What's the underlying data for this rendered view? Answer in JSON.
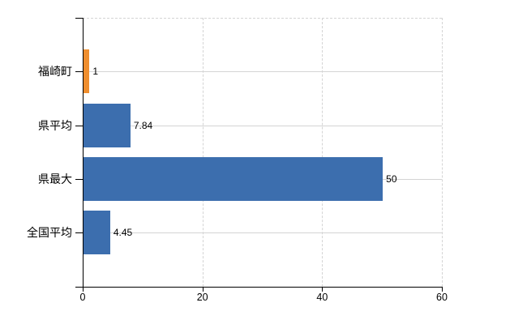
{
  "chart_data": {
    "type": "bar",
    "orientation": "horizontal",
    "title": "",
    "xlabel": "",
    "ylabel": "",
    "categories": [
      "福崎町",
      "県平均",
      "県最大",
      "全国平均"
    ],
    "values": [
      1,
      7.84,
      50,
      4.45
    ],
    "value_labels": [
      "1",
      "7.84",
      "50",
      "4.45"
    ],
    "series_colors": [
      "#ef8e2e",
      "#3c6eae",
      "#3c6eae",
      "#3c6eae"
    ],
    "highlight_category": "福崎町",
    "x_ticks": [
      "0",
      "20",
      "40",
      "60"
    ],
    "x_tick_values": [
      0,
      20,
      40,
      60
    ],
    "xlim": [
      0,
      60
    ],
    "grid": "on",
    "legend": "none"
  },
  "colors": {
    "background": "#ffffff",
    "axis": "#000000",
    "grid": "#d4d4d4",
    "text": "#000000",
    "bar_default": "#3c6eae",
    "bar_highlight": "#ef8e2e"
  }
}
